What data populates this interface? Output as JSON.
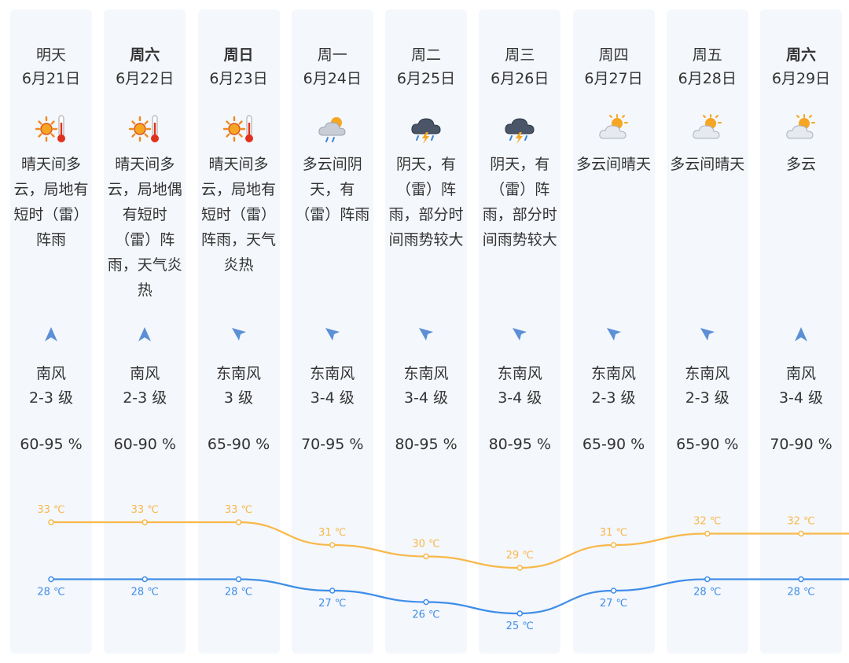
{
  "days": [
    {
      "name": "明天",
      "bold": false,
      "date": "6月21日",
      "icon": "sunny-hot-icon",
      "desc": [
        "晴天间多",
        "云，局地有",
        "短时（雷）",
        "阵雨"
      ],
      "wind_icon": "wind-arrow-north-icon",
      "wind_dir": "南风",
      "wind_level": "2-3 级",
      "humidity": "60-95 %"
    },
    {
      "name": "周六",
      "bold": true,
      "date": "6月22日",
      "icon": "sunny-hot-icon",
      "desc": [
        "晴天间多",
        "云，局地偶",
        "有短时",
        "（雷）阵",
        "雨，天气炎",
        "热"
      ],
      "wind_icon": "wind-arrow-north-icon",
      "wind_dir": "南风",
      "wind_level": "2-3 级",
      "humidity": "60-90 %"
    },
    {
      "name": "周日",
      "bold": true,
      "date": "6月23日",
      "icon": "sunny-hot-icon",
      "desc": [
        "晴天间多",
        "云，局地有",
        "短时（雷）",
        "阵雨，天气",
        "炎热"
      ],
      "wind_icon": "wind-arrow-northwest-icon",
      "wind_dir": "东南风",
      "wind_level": "3 级",
      "humidity": "65-90 %"
    },
    {
      "name": "周一",
      "bold": false,
      "date": "6月24日",
      "icon": "cloudy-rain-icon",
      "desc": [
        "多云间阴",
        "天，有",
        "（雷）阵雨"
      ],
      "wind_icon": "wind-arrow-northwest-icon",
      "wind_dir": "东南风",
      "wind_level": "3-4 级",
      "humidity": "70-95 %"
    },
    {
      "name": "周二",
      "bold": false,
      "date": "6月25日",
      "icon": "thunderstorm-icon",
      "desc": [
        "阴天，有",
        "（雷）阵",
        "雨，部分时",
        "间雨势较大"
      ],
      "wind_icon": "wind-arrow-northwest-icon",
      "wind_dir": "东南风",
      "wind_level": "3-4 级",
      "humidity": "80-95 %"
    },
    {
      "name": "周三",
      "bold": false,
      "date": "6月26日",
      "icon": "thunderstorm-icon",
      "desc": [
        "阴天，有",
        "（雷）阵",
        "雨，部分时",
        "间雨势较大"
      ],
      "wind_icon": "wind-arrow-northwest-icon",
      "wind_dir": "东南风",
      "wind_level": "3-4 级",
      "humidity": "80-95 %"
    },
    {
      "name": "周四",
      "bold": false,
      "date": "6月27日",
      "icon": "partly-cloudy-icon",
      "desc": [
        "多云间晴天"
      ],
      "wind_icon": "wind-arrow-northwest-icon",
      "wind_dir": "东南风",
      "wind_level": "2-3 级",
      "humidity": "65-90 %"
    },
    {
      "name": "周五",
      "bold": false,
      "date": "6月28日",
      "icon": "partly-cloudy-icon",
      "desc": [
        "多云间晴天"
      ],
      "wind_icon": "wind-arrow-northwest-icon",
      "wind_dir": "东南风",
      "wind_level": "2-3 级",
      "humidity": "65-90 %"
    },
    {
      "name": "周六",
      "bold": true,
      "date": "6月29日",
      "icon": "partly-cloudy-icon",
      "desc": [
        "多云"
      ],
      "wind_icon": "wind-arrow-north-icon",
      "wind_dir": "南风",
      "wind_level": "3-4 级",
      "humidity": "70-90 %"
    }
  ],
  "chart_data": {
    "type": "line",
    "categories": [
      "6月21日",
      "6月22日",
      "6月23日",
      "6月24日",
      "6月25日",
      "6月26日",
      "6月27日",
      "6月28日",
      "6月29日"
    ],
    "unit": "℃",
    "series": [
      {
        "values": [
          33,
          33,
          33,
          31,
          30,
          29,
          31,
          32,
          32
        ],
        "color": "#f8b84a"
      },
      {
        "values": [
          28,
          28,
          28,
          27,
          26,
          25,
          27,
          28,
          28
        ],
        "color": "#3f8ee8"
      }
    ],
    "ylim": [
      25,
      33
    ]
  },
  "colors": {
    "column_bg": "#f4f7fc",
    "text": "#333333",
    "wind_arrow": "#5b8fd6",
    "high_line": "#f8b84a",
    "low_line": "#3f8ee8"
  }
}
